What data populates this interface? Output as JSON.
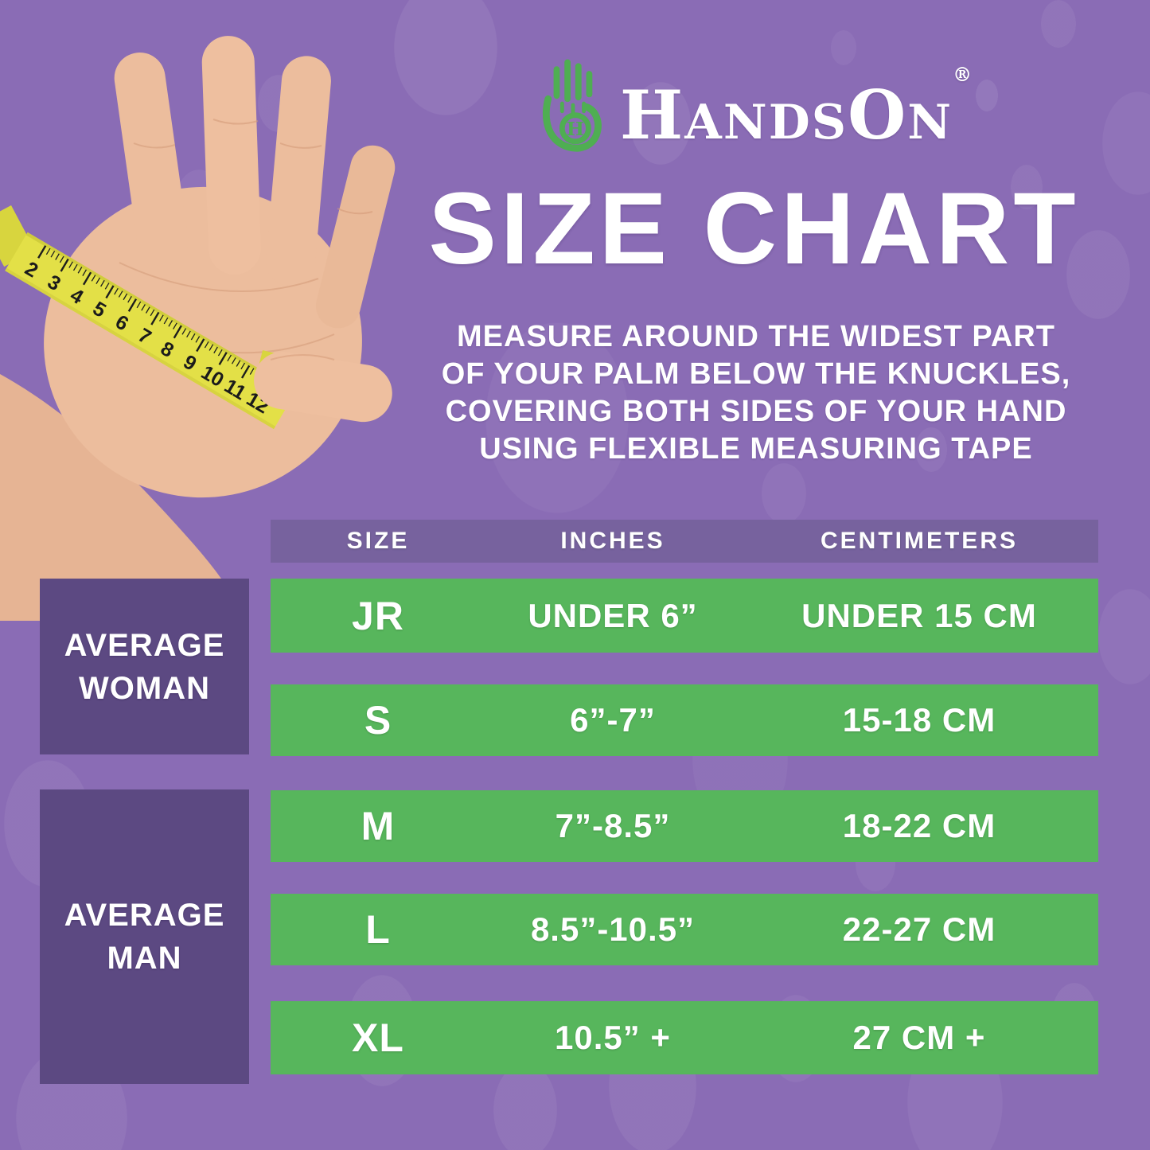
{
  "logo": {
    "word_h": "H",
    "word_ands": "ANDS",
    "word_o": "O",
    "word_n": "N",
    "registered": "®",
    "icon_letter": "H",
    "green": "#4fae52"
  },
  "title": "SIZE CHART",
  "instructions": "MEASURE AROUND THE WIDEST PART\nOF YOUR PALM BELOW THE KNUCKLES,\nCOVERING BOTH SIDES OF YOUR HAND\nUSING FLEXIBLE MEASURING TAPE",
  "table": {
    "headers": {
      "size": "SIZE",
      "inches": "INCHES",
      "centimeters": "CENTIMETERS"
    },
    "rows": [
      {
        "size": "JR",
        "inches": "UNDER 6”",
        "cm": "UNDER 15 CM"
      },
      {
        "size": "S",
        "inches": "6”-7”",
        "cm": "15-18 CM"
      },
      {
        "size": "M",
        "inches": "7”-8.5”",
        "cm": "18-22 CM"
      },
      {
        "size": "L",
        "inches": "8.5”-10.5”",
        "cm": "22-27 CM"
      },
      {
        "size": "XL",
        "inches": "10.5” +",
        "cm": "27 CM +"
      }
    ]
  },
  "groups": {
    "woman": "AVERAGE\nWOMAN",
    "man": "AVERAGE\nMAN"
  },
  "tape_numbers": [
    "2",
    "3",
    "4",
    "5",
    "6",
    "7",
    "8",
    "9",
    "10",
    "11",
    "12"
  ],
  "colors": {
    "background": "#8a6cb5",
    "row_green": "#57b65c",
    "header_band": "#77629e",
    "group_box": "#5c4982",
    "tape_yellow": "#e3e047",
    "text": "#ffffff"
  },
  "chart_data": {
    "type": "table",
    "title": "SIZE CHART",
    "columns": [
      "SIZE",
      "INCHES",
      "CENTIMETERS"
    ],
    "rows": [
      [
        "JR",
        "UNDER 6”",
        "UNDER 15 CM"
      ],
      [
        "S",
        "6”-7”",
        "15-18 CM"
      ],
      [
        "M",
        "7”-8.5”",
        "18-22 CM"
      ],
      [
        "L",
        "8.5”-10.5”",
        "22-27 CM"
      ],
      [
        "XL",
        "10.5” +",
        "27 CM +"
      ]
    ],
    "row_groups": [
      {
        "label": "AVERAGE WOMAN",
        "rows": [
          "JR",
          "S"
        ]
      },
      {
        "label": "AVERAGE MAN",
        "rows": [
          "M",
          "L",
          "XL"
        ]
      }
    ]
  }
}
